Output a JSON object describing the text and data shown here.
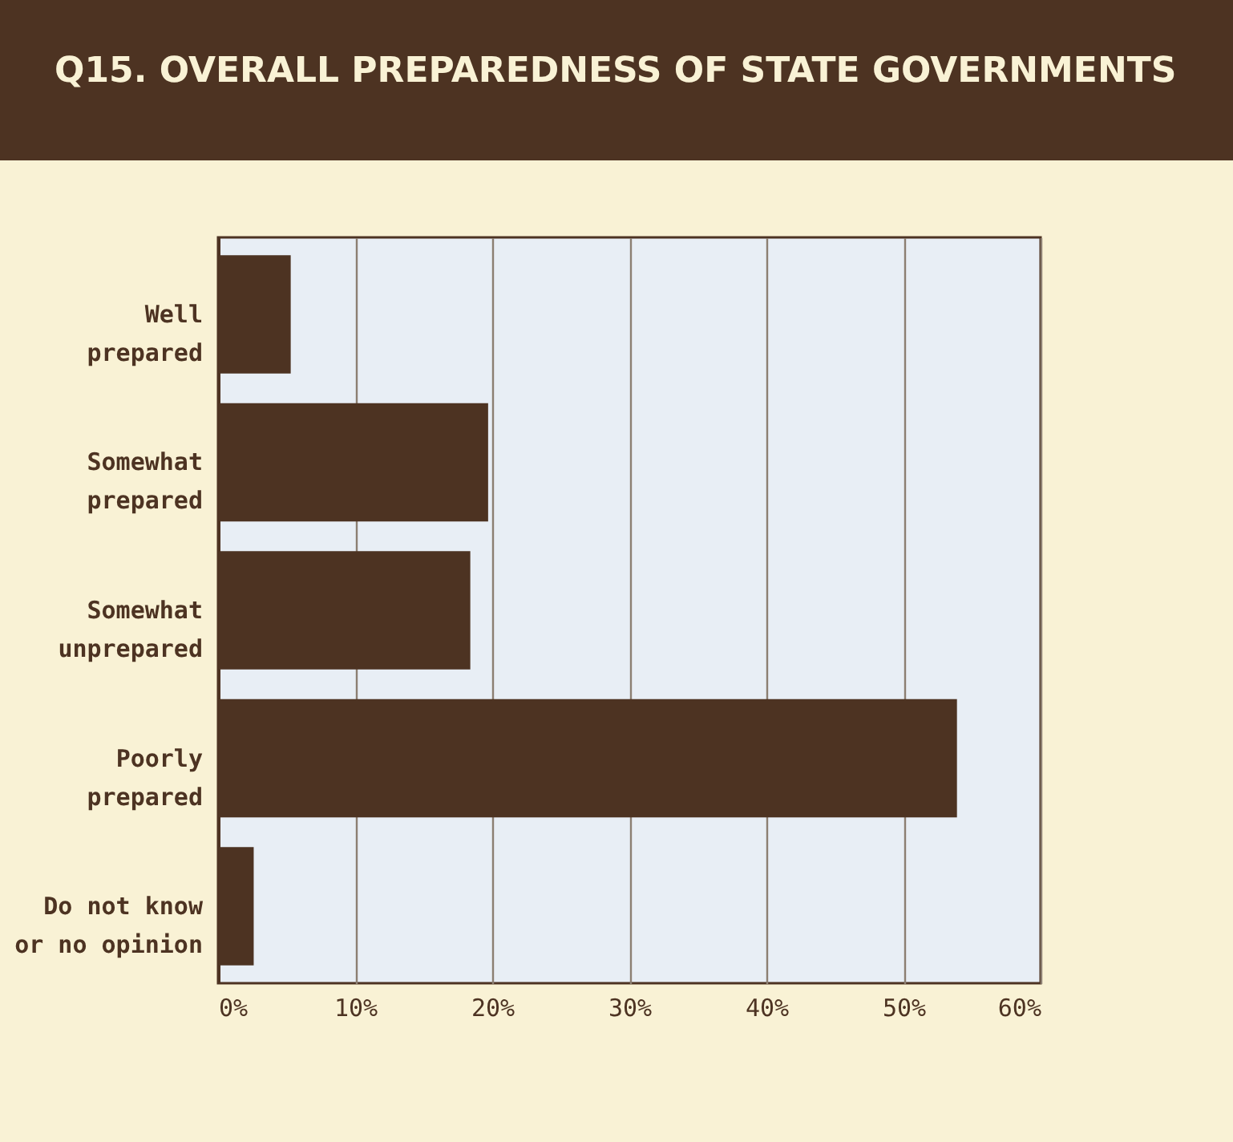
{
  "chart_data": {
    "type": "bar",
    "orientation": "horizontal",
    "title": "Q15. OVERALL PREPAREDNESS OF STATE GOVERNMENTS",
    "categories": [
      "Well\nprepared",
      "Somewhat\nprepared",
      "Somewhat\nunprepared",
      "Poorly\nprepared",
      "Do not know\nor no opinion"
    ],
    "values": [
      5.3,
      19.7,
      18.4,
      53.9,
      2.6
    ],
    "color": "#4d3322",
    "xlim": [
      0,
      60
    ],
    "xticks": [
      {
        "value": 0,
        "label": "0%"
      },
      {
        "value": 10,
        "label": "10%"
      },
      {
        "value": 20,
        "label": "20%"
      },
      {
        "value": 30,
        "label": "30%"
      },
      {
        "value": 40,
        "label": "40%"
      },
      {
        "value": 50,
        "label": "50%"
      },
      {
        "value": 60,
        "label": "60%"
      }
    ],
    "grid": "x"
  }
}
